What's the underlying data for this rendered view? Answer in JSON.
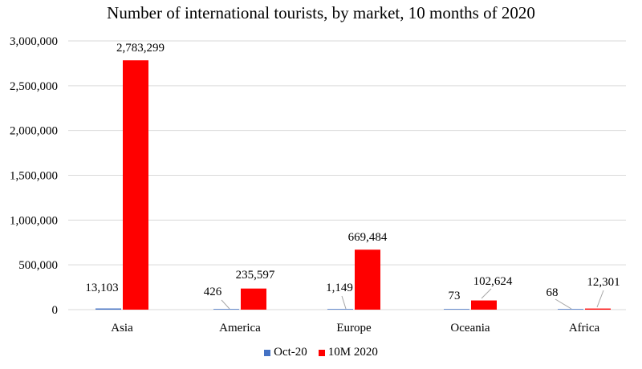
{
  "chart_data": {
    "type": "bar",
    "title": "Number of international tourists, by market, 10 months of 2020",
    "categories": [
      "Asia",
      "America",
      "Europe",
      "Oceania",
      "Africa"
    ],
    "series": [
      {
        "name": "Oct-20",
        "color": "#4472C4",
        "values": [
          13103,
          426,
          1149,
          73,
          68
        ],
        "labels": [
          "13,103",
          "426",
          "1,149",
          "73",
          "68"
        ]
      },
      {
        "name": "10M 2020",
        "color": "#FF0000",
        "values": [
          2783299,
          235597,
          669484,
          102624,
          12301
        ],
        "labels": [
          "2,783,299",
          "235,597",
          "669,484",
          "102,624",
          "12,301"
        ]
      }
    ],
    "yticks": [
      0,
      500000,
      1000000,
      1500000,
      2000000,
      2500000,
      3000000
    ],
    "ytick_labels": [
      "0",
      "500,000",
      "1,000,000",
      "1,500,000",
      "2,000,000",
      "2,500,000",
      "3,000,000"
    ],
    "ylim": [
      0,
      3000000
    ],
    "xlabel": "",
    "ylabel": "",
    "grid": true,
    "legend_position": "bottom"
  }
}
